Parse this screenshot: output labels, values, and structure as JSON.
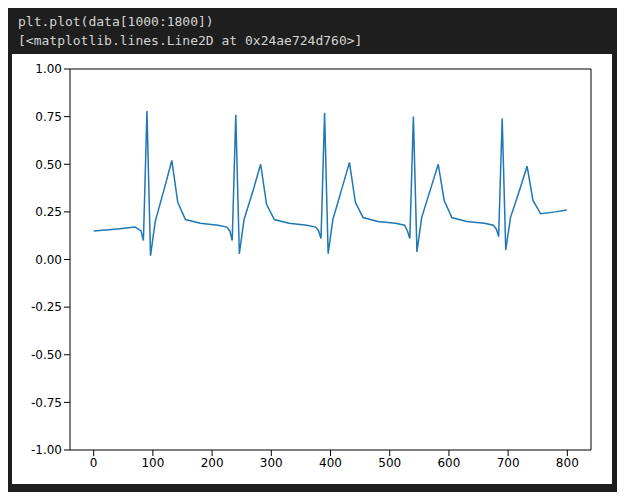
{
  "code": "plt.plot(data[1000:1800])",
  "output": "[<matplotlib.lines.Line2D at 0x24ae724d760>]",
  "chart_data": {
    "type": "line",
    "x": [
      0,
      40,
      70,
      80,
      84,
      90,
      96,
      104,
      120,
      132,
      142,
      155,
      180,
      210,
      225,
      230,
      234,
      240,
      246,
      254,
      270,
      282,
      292,
      305,
      330,
      360,
      375,
      380,
      384,
      390,
      396,
      404,
      420,
      432,
      442,
      455,
      480,
      510,
      525,
      530,
      534,
      540,
      546,
      554,
      570,
      582,
      592,
      605,
      630,
      660,
      675,
      680,
      684,
      690,
      696,
      704,
      720,
      732,
      742,
      755,
      780,
      799
    ],
    "values": [
      0.15,
      0.16,
      0.17,
      0.15,
      0.1,
      0.78,
      0.02,
      0.2,
      0.38,
      0.52,
      0.3,
      0.21,
      0.19,
      0.18,
      0.17,
      0.15,
      0.1,
      0.76,
      0.03,
      0.21,
      0.37,
      0.5,
      0.29,
      0.21,
      0.19,
      0.18,
      0.17,
      0.15,
      0.11,
      0.77,
      0.03,
      0.21,
      0.38,
      0.51,
      0.3,
      0.22,
      0.2,
      0.19,
      0.18,
      0.15,
      0.11,
      0.75,
      0.04,
      0.22,
      0.38,
      0.5,
      0.31,
      0.22,
      0.2,
      0.19,
      0.18,
      0.16,
      0.12,
      0.74,
      0.05,
      0.22,
      0.37,
      0.49,
      0.31,
      0.24,
      0.25,
      0.26
    ],
    "color": "#1f77b4",
    "xlim": [
      -40,
      840
    ],
    "xticks": [
      0,
      100,
      200,
      300,
      400,
      500,
      600,
      700,
      800
    ],
    "ylim": [
      -1,
      1
    ],
    "yticks": [
      {
        "value": -1,
        "label": "-1.00"
      },
      {
        "value": -0.75,
        "label": "-0.75"
      },
      {
        "value": -0.5,
        "label": "-0.50"
      },
      {
        "value": -0.25,
        "label": "-0.25"
      },
      {
        "value": 0,
        "label": "0.00"
      },
      {
        "value": 0.25,
        "label": "0.25"
      },
      {
        "value": 0.5,
        "label": "0.50"
      },
      {
        "value": 0.75,
        "label": "0.75"
      },
      {
        "value": 1,
        "label": "1.00"
      }
    ],
    "grid": false
  }
}
